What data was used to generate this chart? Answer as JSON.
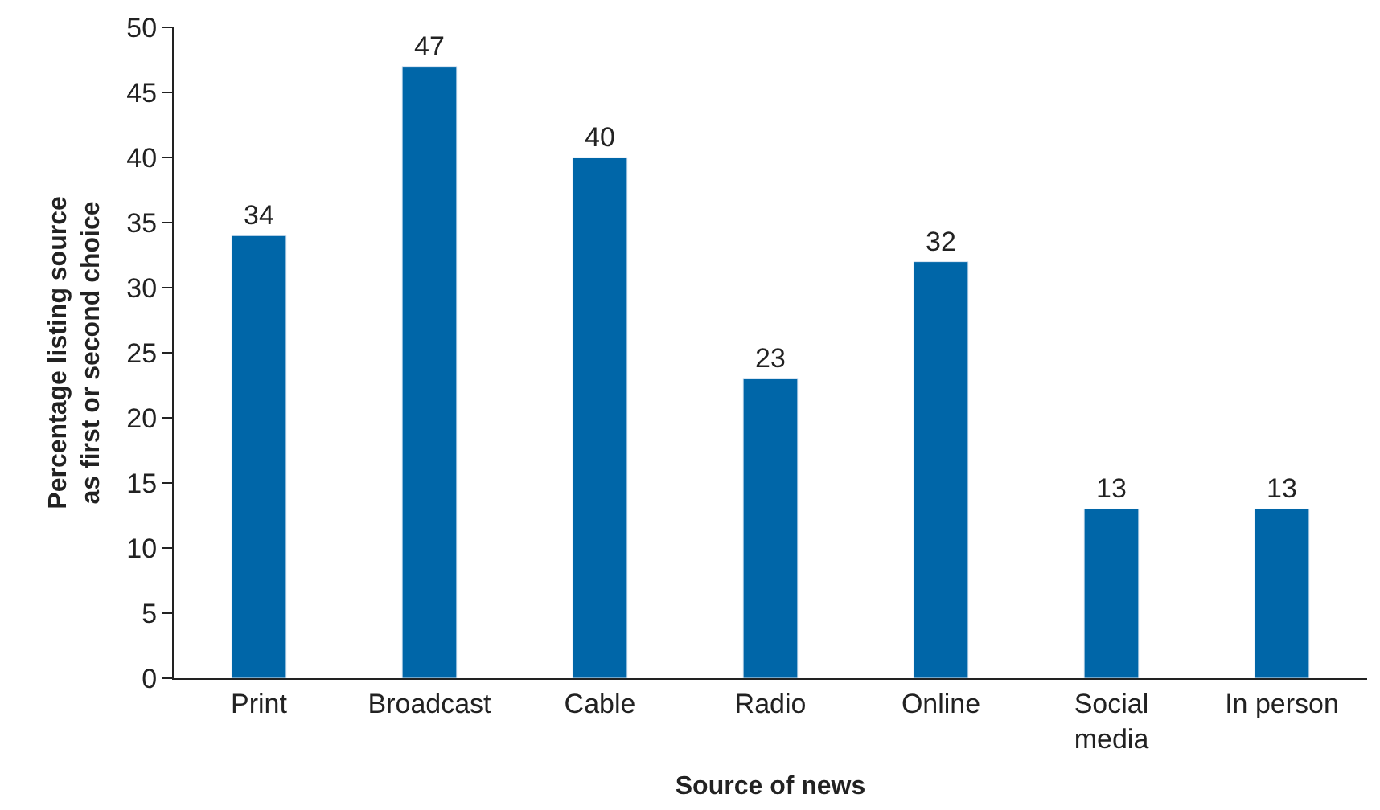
{
  "chart_data": {
    "type": "bar",
    "xlabel": "Source of news",
    "ylabel": "Percentage listing source as first or second choice",
    "categories": [
      "Print",
      "Broadcast",
      "Cable",
      "Radio",
      "Online",
      "Social media",
      "In person"
    ],
    "values": [
      34,
      47,
      40,
      23,
      32,
      13,
      13
    ],
    "color": "#0066a8",
    "data_labels": true,
    "ylim": [
      0,
      50
    ],
    "yticks": [
      0,
      5,
      10,
      15,
      20,
      25,
      30,
      35,
      40,
      45,
      50
    ]
  }
}
